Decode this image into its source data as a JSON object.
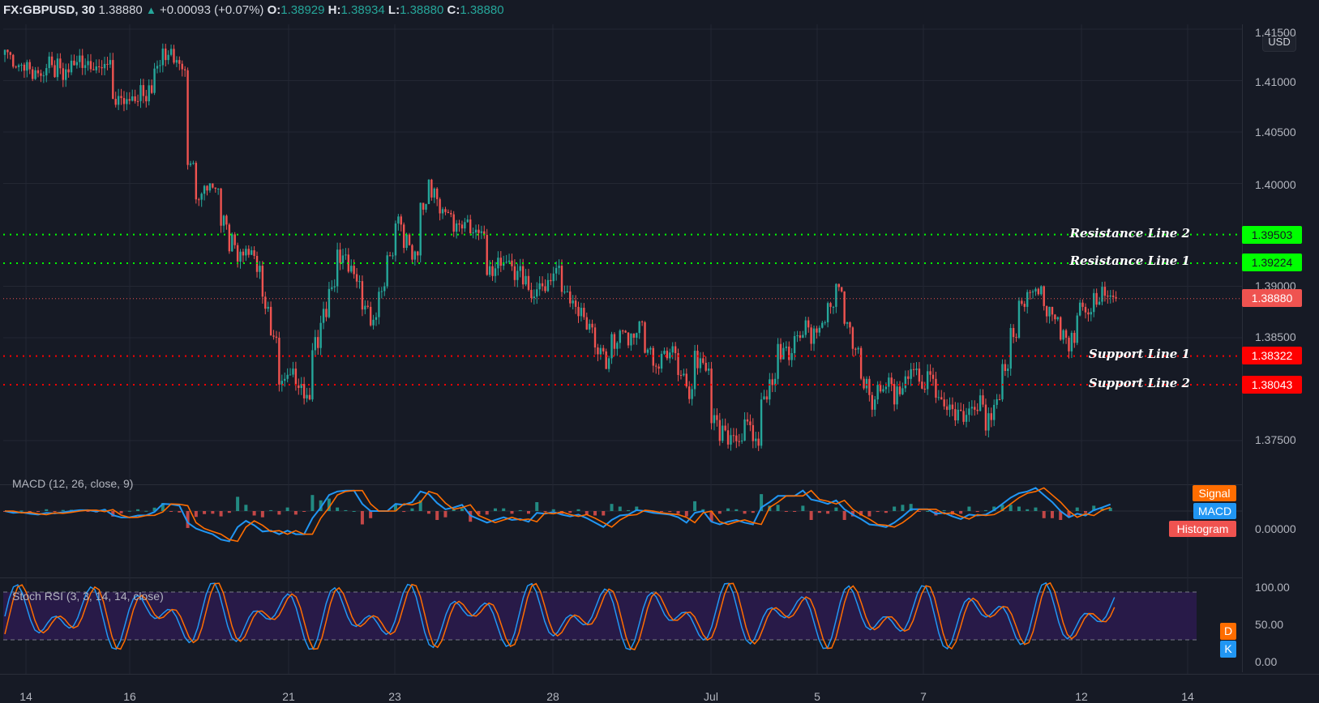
{
  "header": {
    "symbol": "FX:GBPUSD, 30",
    "last": "1.38880",
    "change": "+0.00093 (+0.07%)",
    "o_label": "O:",
    "o": "1.38929",
    "h_label": "H:",
    "h": "1.38934",
    "l_label": "L:",
    "l": "1.38880",
    "c_label": "C:",
    "c": "1.38880",
    "change_icon": "triangle-up-icon"
  },
  "price_scale": {
    "currency": "USD",
    "ticks": [
      "1.41500",
      "1.41000",
      "1.40500",
      "1.40000",
      "1.39000",
      "1.38500",
      "1.37500"
    ],
    "current_price": "1.38880"
  },
  "levels": [
    {
      "name": "Resistance Line 2",
      "value": "1.39503",
      "color": "#00ff00",
      "text_color": "#131722"
    },
    {
      "name": "Resistance Line 1",
      "value": "1.39224",
      "color": "#00ff00",
      "text_color": "#131722"
    },
    {
      "name": "Support Line 1",
      "value": "1.38322",
      "color": "#ff0000",
      "text_color": "#ffffff"
    },
    {
      "name": "Support Line 2",
      "value": "1.38043",
      "color": "#ff0000",
      "text_color": "#ffffff"
    }
  ],
  "current_price_tag": {
    "value": "1.38880",
    "color": "#ef5350"
  },
  "macd": {
    "title": "MACD (12, 26, close, 9)",
    "zero_label": "0.00000",
    "legend": [
      {
        "label": "Signal",
        "color": "#ff6d00"
      },
      {
        "label": "MACD",
        "color": "#2196f3"
      },
      {
        "label": "Histogram",
        "color": "#ef5350"
      }
    ]
  },
  "stoch_rsi": {
    "title": "Stoch RSI (3, 3, 14, 14, close)",
    "ticks": [
      "100.00",
      "50.00",
      "0.00"
    ],
    "legend": [
      {
        "label": "D",
        "color": "#ff6d00"
      },
      {
        "label": "K",
        "color": "#2196f3"
      }
    ]
  },
  "x_axis": {
    "labels": [
      "14",
      "16",
      "21",
      "23",
      "28",
      "Jul",
      "5",
      "7",
      "12",
      "14"
    ]
  },
  "colors": {
    "background": "#161a25",
    "grid": "#232733",
    "up": "#26a69a",
    "down": "#ef5350",
    "macd_line": "#2196f3",
    "signal_line": "#ff6d00",
    "stoch_band": "#2a1b4d"
  },
  "chart_data": {
    "type": "candlestick",
    "title": "FX:GBPUSD, 30",
    "xlabel": "",
    "ylabel": "USD",
    "ylim": [
      1.3725,
      1.4155
    ],
    "x_ticks": [
      "14",
      "16",
      "21",
      "23",
      "28",
      "Jul",
      "5",
      "7",
      "12",
      "14"
    ],
    "y_ticks": [
      1.415,
      1.41,
      1.405,
      1.4,
      1.39,
      1.385,
      1.375
    ],
    "close_series_approx": [
      1.4125,
      1.4115,
      1.4118,
      1.411,
      1.4105,
      1.4115,
      1.4112,
      1.4108,
      1.4118,
      1.4115,
      1.411,
      1.4112,
      1.412,
      1.4085,
      1.4082,
      1.408,
      1.4085,
      1.4088,
      1.4115,
      1.4125,
      1.412,
      1.411,
      1.402,
      1.399,
      1.4,
      1.3995,
      1.396,
      1.394,
      1.393,
      1.3935,
      1.392,
      1.388,
      1.385,
      1.381,
      1.382,
      1.3805,
      1.379,
      1.384,
      1.387,
      1.39,
      1.393,
      1.392,
      1.3905,
      1.388,
      1.387,
      1.39,
      1.393,
      1.396,
      1.394,
      1.393,
      1.398,
      1.3995,
      1.3975,
      1.397,
      1.396,
      1.3965,
      1.3955,
      1.395,
      1.391,
      1.392,
      1.3925,
      1.3915,
      1.391,
      1.389,
      1.39,
      1.3905,
      1.392,
      1.3895,
      1.388,
      1.387,
      1.386,
      1.384,
      1.383,
      1.3845,
      1.3855,
      1.385,
      1.3865,
      1.384,
      1.382,
      1.383,
      1.3835,
      1.3815,
      1.38,
      1.383,
      1.382,
      1.377,
      1.376,
      1.3755,
      1.375,
      1.3765,
      1.3745,
      1.379,
      1.381,
      1.384,
      1.3835,
      1.385,
      1.386,
      1.3855,
      1.3865,
      1.388,
      1.3895,
      1.386,
      1.384,
      1.381,
      1.379,
      1.38,
      1.3805,
      1.3795,
      1.381,
      1.382,
      1.38,
      1.381,
      1.379,
      1.3785,
      1.378,
      1.3775,
      1.378,
      1.3785,
      1.377,
      1.379,
      1.382,
      1.385,
      1.388,
      1.3895,
      1.39,
      1.388,
      1.387,
      1.385,
      1.3845,
      1.388,
      1.3875,
      1.3885,
      1.389,
      1.3888
    ],
    "horizontal_levels": [
      {
        "label": "Resistance Line 2",
        "value": 1.39503
      },
      {
        "label": "Resistance Line 1",
        "value": 1.39224
      },
      {
        "label": "Support Line 1",
        "value": 1.38322
      },
      {
        "label": "Support Line 2",
        "value": 1.38043
      }
    ],
    "current_price": 1.3888,
    "indicators": [
      {
        "name": "MACD (12, 26, close, 9)",
        "series": [
          "MACD",
          "Signal",
          "Histogram"
        ],
        "zero": 0.0
      },
      {
        "name": "Stoch RSI (3, 3, 14, 14, close)",
        "series": [
          "K",
          "D"
        ],
        "ylim": [
          0,
          100
        ],
        "bands": [
          20,
          80
        ]
      }
    ]
  }
}
